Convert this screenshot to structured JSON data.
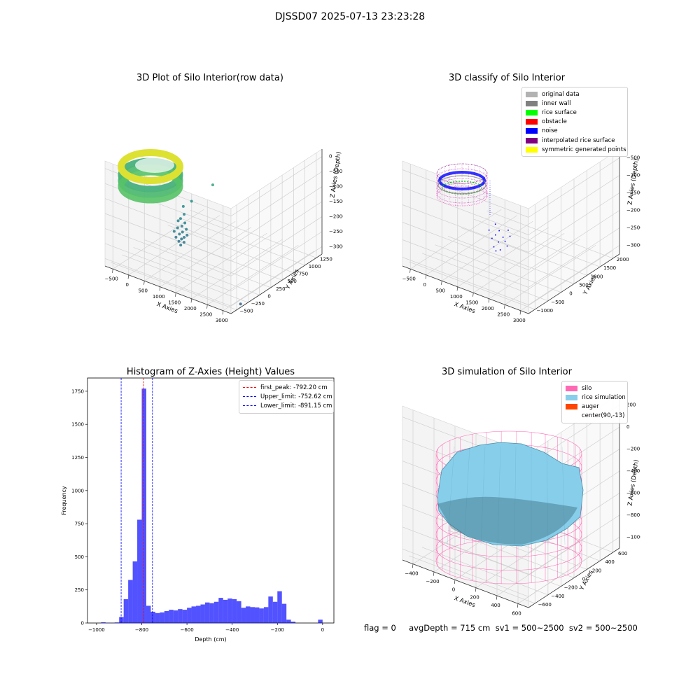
{
  "suptitle": "DJSSD07 2025-07-13 23:23:28",
  "footer": "flag = 0     avgDepth = 715 cm  sv1 = 500~2500  sv2 = 500~2500",
  "chart_data": [
    {
      "type": "scatter",
      "title": "3D Plot of Silo Interior(row data)",
      "xlabel": "X Axies",
      "ylabel": "Y Axies",
      "zlabel": "Z Axies (Depth)",
      "x_ticks": [
        "−500",
        "0",
        "500",
        "1000",
        "1500",
        "2000",
        "2500",
        "3000"
      ],
      "y_ticks": [
        "−500",
        "−250",
        "0",
        "250",
        "500",
        "750",
        "1000",
        "1250"
      ],
      "z_ticks": [
        "0",
        "−500",
        "−1000",
        "−1500",
        "−2000",
        "−2500",
        "−3000"
      ],
      "xlim": [
        -600,
        3000
      ],
      "ylim": [
        -600,
        1300
      ],
      "zlim": [
        -3100,
        0
      ],
      "colormap": "viridis",
      "points": [
        [
          200,
          450,
          -2000
        ],
        [
          320,
          380,
          -2120
        ],
        [
          450,
          300,
          -2250
        ],
        [
          560,
          250,
          -2350
        ],
        [
          650,
          200,
          -2440
        ],
        [
          300,
          320,
          -2200
        ],
        [
          420,
          260,
          -2320
        ],
        [
          520,
          200,
          -2400
        ],
        [
          620,
          160,
          -2480
        ],
        [
          380,
          200,
          -2330
        ],
        [
          500,
          150,
          -2420
        ],
        [
          600,
          120,
          -2500
        ],
        [
          700,
          100,
          -2540
        ],
        [
          350,
          150,
          -2400
        ],
        [
          470,
          100,
          -2480
        ],
        [
          580,
          80,
          -2540
        ],
        [
          660,
          60,
          -2600
        ],
        [
          260,
          300,
          -2260
        ],
        [
          300,
          550,
          -1900
        ],
        [
          700,
          700,
          -1400
        ],
        [
          3000,
          -400,
          -3000
        ]
      ]
    },
    {
      "type": "scatter",
      "title": "3D classify of Silo Interior",
      "xlabel": "X Axies",
      "ylabel": "Y Axies",
      "zlabel": "Z Axies (Depth)",
      "x_ticks": [
        "−500",
        "0",
        "500",
        "1000",
        "1500",
        "2000",
        "2500",
        "3000"
      ],
      "y_ticks": [
        "−1000",
        "−500",
        "0",
        "500",
        "1000",
        "1500",
        "2000"
      ],
      "z_ticks": [
        "−500",
        "−1000",
        "−1500",
        "−2000",
        "−2500",
        "−3000"
      ],
      "xlim": [
        -600,
        3000
      ],
      "ylim": [
        -1100,
        2100
      ],
      "zlim": [
        -3100,
        -200
      ],
      "legend": [
        {
          "label": "original data",
          "color": "#b2b2b2"
        },
        {
          "label": "inner wall",
          "color": "#808080"
        },
        {
          "label": "rice surface",
          "color": "#00ff00"
        },
        {
          "label": "obstacle",
          "color": "#ff0000"
        },
        {
          "label": "noise",
          "color": "#0000ff"
        },
        {
          "label": "interpolated rice surface",
          "color": "#800080"
        },
        {
          "label": "symmetric generated points",
          "color": "#ffff00"
        }
      ],
      "noise_points": [
        [
          900,
          300,
          -2100
        ],
        [
          1050,
          250,
          -2200
        ],
        [
          1200,
          200,
          -2300
        ],
        [
          1300,
          150,
          -2350
        ],
        [
          1150,
          100,
          -2400
        ],
        [
          1000,
          180,
          -2300
        ],
        [
          1350,
          260,
          -2250
        ],
        [
          1250,
          320,
          -2150
        ],
        [
          1400,
          100,
          -2420
        ],
        [
          950,
          120,
          -2380
        ],
        [
          1100,
          0,
          -2500
        ],
        [
          1200,
          -50,
          -2550
        ],
        [
          1300,
          -20,
          -2500
        ],
        [
          800,
          200,
          -2250
        ]
      ]
    },
    {
      "type": "bar",
      "title": "Histogram of Z-Axies (Height) Values",
      "xlabel": "Depth (cm)",
      "ylabel": "Frequency",
      "xlim": [
        -1040,
        50
      ],
      "ylim": [
        0,
        1850
      ],
      "x_ticks": [
        -1000,
        -800,
        -600,
        -400,
        -200,
        0
      ],
      "x_tick_labels": [
        "−1000",
        "−800",
        "−600",
        "−400",
        "−200",
        "0"
      ],
      "y_ticks": [
        0,
        250,
        500,
        750,
        1000,
        1250,
        1500,
        1750
      ],
      "bar_color": "#0000ff",
      "bin_width": 20,
      "bins_left": [
        -1000,
        -980,
        -960,
        -940,
        -920,
        -900,
        -880,
        -860,
        -840,
        -820,
        -800,
        -780,
        -760,
        -740,
        -720,
        -700,
        -680,
        -660,
        -640,
        -620,
        -600,
        -580,
        -560,
        -540,
        -520,
        -500,
        -480,
        -460,
        -440,
        -420,
        -400,
        -380,
        -360,
        -340,
        -320,
        -300,
        -280,
        -260,
        -240,
        -220,
        -200,
        -180,
        -160,
        -140,
        -120,
        -100,
        -80,
        -60,
        -40,
        -20,
        0
      ],
      "counts": [
        0,
        5,
        2,
        1,
        4,
        45,
        180,
        325,
        465,
        780,
        1770,
        130,
        85,
        75,
        80,
        90,
        100,
        95,
        105,
        100,
        115,
        125,
        130,
        140,
        155,
        150,
        160,
        190,
        175,
        185,
        180,
        165,
        115,
        125,
        120,
        118,
        110,
        120,
        200,
        160,
        240,
        145,
        25,
        10,
        0,
        0,
        0,
        0,
        0,
        25,
        0
      ],
      "vlines": [
        {
          "label": "first_peak: -792.20 cm",
          "x": -792.2,
          "color": "#ff0000"
        },
        {
          "label": "Upper_limit: -752.62 cm",
          "x": -752.62,
          "color": "#0000ff"
        },
        {
          "label": "Lower_limit: -891.15 cm",
          "x": -891.15,
          "color": "#0000ff"
        }
      ]
    },
    {
      "type": "surface",
      "title": "3D simulation of Silo Interior",
      "xlabel": "X Axies",
      "ylabel": "Y Axies",
      "zlabel": "Z Axies (Depth)",
      "x_ticks": [
        "−400",
        "−200",
        "0",
        "200",
        "400",
        "600"
      ],
      "y_ticks": [
        "−600",
        "−400",
        "−200",
        "0",
        "200",
        "400",
        "600"
      ],
      "z_ticks": [
        "200",
        "0",
        "−200",
        "−400",
        "−600",
        "−800",
        "−1000"
      ],
      "xlim": [
        -600,
        700
      ],
      "ylim": [
        -700,
        700
      ],
      "zlim": [
        -1200,
        300
      ],
      "legend": [
        {
          "label": "silo",
          "color": "#ff69b4"
        },
        {
          "label": "rice simulation",
          "color": "#87ceeb"
        },
        {
          "label": "auger",
          "color": "#ff4500"
        },
        {
          "label": "center(90,-13)",
          "color": ""
        }
      ]
    }
  ]
}
